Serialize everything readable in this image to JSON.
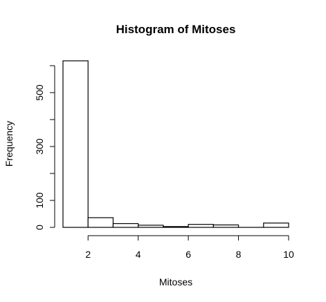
{
  "chart_data": {
    "type": "bar",
    "title": "Histogram of Mitoses",
    "xlabel": "Mitoses",
    "ylabel": "Frequency",
    "bins": [
      {
        "start": 1,
        "end": 2,
        "count": 618
      },
      {
        "start": 2,
        "end": 3,
        "count": 36
      },
      {
        "start": 3,
        "end": 4,
        "count": 14
      },
      {
        "start": 4,
        "end": 5,
        "count": 8
      },
      {
        "start": 5,
        "end": 6,
        "count": 3
      },
      {
        "start": 6,
        "end": 7,
        "count": 11
      },
      {
        "start": 7,
        "end": 8,
        "count": 9
      },
      {
        "start": 8,
        "end": 9,
        "count": 0
      },
      {
        "start": 9,
        "end": 10,
        "count": 16
      }
    ],
    "xlim": [
      1,
      10
    ],
    "ylim": [
      0,
      618
    ],
    "x_ticks": [
      2,
      4,
      6,
      8,
      10
    ],
    "y_ticks": [
      0,
      100,
      200,
      300,
      400,
      500,
      600
    ],
    "y_tick_labels_shown": [
      0,
      100,
      300,
      500
    ],
    "grid": false,
    "legend": "none"
  }
}
